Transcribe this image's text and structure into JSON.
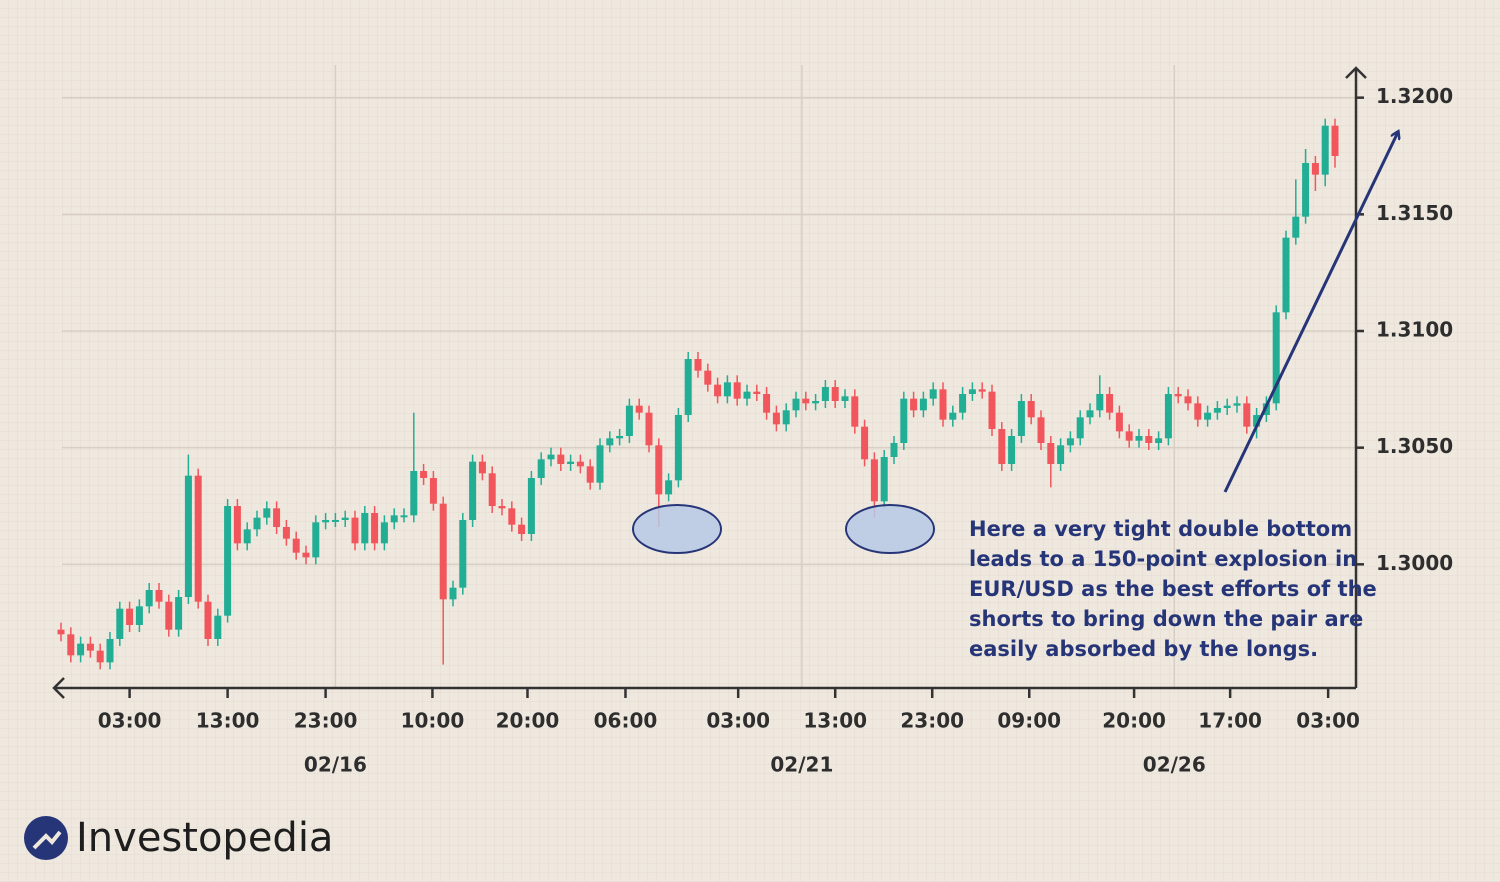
{
  "chart_data": {
    "type": "candlestick",
    "up_color": "#22ad95",
    "down_color": "#f0565b",
    "grid": true,
    "ylim": [
      1.2947,
      1.3214
    ],
    "yticks": [
      {
        "value": 1.3,
        "label": "1.3000"
      },
      {
        "value": 1.305,
        "label": "1.3050"
      },
      {
        "value": 1.31,
        "label": "1.3100"
      },
      {
        "value": 1.315,
        "label": "1.3150"
      },
      {
        "value": 1.32,
        "label": "1.3200"
      }
    ],
    "xticks": [
      {
        "value": 7,
        "label": "03:00"
      },
      {
        "value": 17,
        "label": "13:00"
      },
      {
        "value": 27,
        "label": "23:00"
      },
      {
        "value": 37.9,
        "label": "10:00"
      },
      {
        "value": 47.6,
        "label": "20:00"
      },
      {
        "value": 57.6,
        "label": "06:00"
      },
      {
        "value": 69.1,
        "label": "03:00"
      },
      {
        "value": 79,
        "label": "13:00"
      },
      {
        "value": 88.9,
        "label": "23:00"
      },
      {
        "value": 98.8,
        "label": "09:00"
      },
      {
        "value": 109.5,
        "label": "20:00"
      },
      {
        "value": 119.3,
        "label": "17:00"
      },
      {
        "value": 129.3,
        "label": "03:00"
      }
    ],
    "date_ticks": [
      {
        "value": 28,
        "label": "02/16"
      },
      {
        "value": 75.6,
        "label": "02/21"
      },
      {
        "value": 113.6,
        "label": "02/26"
      }
    ],
    "annotation": [
      "Here a very tight double bottom",
      "leads to a 150-point explosion in",
      "EUR/USD as the best efforts of the",
      "shorts to bring down the pair are",
      "easily absorbed by the longs."
    ],
    "open": [
      1.2972,
      1.297,
      1.2961,
      1.2966,
      1.2963,
      1.2958,
      1.2968,
      1.2981,
      1.2974,
      1.2982,
      1.2989,
      1.2984,
      1.2972,
      1.2986,
      1.3038,
      1.2984,
      1.2968,
      1.2978,
      1.3025,
      1.3009,
      1.3015,
      1.302,
      1.3024,
      1.3016,
      1.3011,
      1.3005,
      1.3003,
      1.3018,
      1.3019,
      1.3019,
      1.302,
      1.3009,
      1.3022,
      1.3009,
      1.3018,
      1.3021,
      1.3021,
      1.304,
      1.3037,
      1.3026,
      1.2985,
      1.299,
      1.3019,
      1.3044,
      1.3039,
      1.3025,
      1.3024,
      1.3017,
      1.3013,
      1.3037,
      1.3045,
      1.3047,
      1.3043,
      1.3044,
      1.3042,
      1.3035,
      1.3051,
      1.3054,
      1.3055,
      1.3068,
      1.3065,
      1.3051,
      1.303,
      1.3036,
      1.3064,
      1.3088,
      1.3083,
      1.3077,
      1.3072,
      1.3078,
      1.3071,
      1.3074,
      1.3073,
      1.3065,
      1.306,
      1.3066,
      1.3071,
      1.3069,
      1.307,
      1.3076,
      1.307,
      1.3072,
      1.3059,
      1.3045,
      1.3027,
      1.3046,
      1.3052,
      1.3071,
      1.3066,
      1.3071,
      1.3075,
      1.3062,
      1.3065,
      1.3073,
      1.3075,
      1.3074,
      1.3058,
      1.3043,
      1.3055,
      1.307,
      1.3063,
      1.3052,
      1.3043,
      1.3051,
      1.3054,
      1.3063,
      1.3066,
      1.3073,
      1.3065,
      1.3057,
      1.3053,
      1.3055,
      1.3052,
      1.3054,
      1.3073,
      1.3072,
      1.3069,
      1.3062,
      1.3065,
      1.3067,
      1.3068,
      1.3069,
      1.3059,
      1.3064,
      1.3069,
      1.3108,
      1.314,
      1.3149,
      1.3172,
      1.3167,
      1.3188
    ],
    "high": [
      1.2975,
      1.2973,
      1.2969,
      1.2969,
      1.2966,
      1.2971,
      1.2984,
      1.2984,
      1.2985,
      1.2992,
      1.2992,
      1.2987,
      1.2989,
      1.3047,
      1.3041,
      1.2987,
      1.2981,
      1.3028,
      1.3028,
      1.3018,
      1.3023,
      1.3027,
      1.3027,
      1.3019,
      1.3014,
      1.3008,
      1.3021,
      1.3022,
      1.3022,
      1.3023,
      1.3023,
      1.3025,
      1.3025,
      1.3021,
      1.3024,
      1.3024,
      1.3065,
      1.3043,
      1.304,
      1.3029,
      1.2993,
      1.3022,
      1.3047,
      1.3047,
      1.3042,
      1.3028,
      1.3027,
      1.302,
      1.304,
      1.3048,
      1.305,
      1.305,
      1.3047,
      1.3047,
      1.3045,
      1.3054,
      1.3057,
      1.3058,
      1.3071,
      1.3071,
      1.3068,
      1.3054,
      1.3039,
      1.3067,
      1.3091,
      1.3091,
      1.3086,
      1.308,
      1.3081,
      1.3081,
      1.3077,
      1.3077,
      1.3076,
      1.3068,
      1.3069,
      1.3074,
      1.3074,
      1.3073,
      1.3079,
      1.3079,
      1.3075,
      1.3075,
      1.3062,
      1.3048,
      1.3049,
      1.3055,
      1.3074,
      1.3074,
      1.3074,
      1.3078,
      1.3078,
      1.3068,
      1.3076,
      1.3078,
      1.3078,
      1.3077,
      1.3061,
      1.3058,
      1.3073,
      1.3073,
      1.3066,
      1.3055,
      1.3054,
      1.3057,
      1.3066,
      1.3069,
      1.3081,
      1.3076,
      1.3068,
      1.306,
      1.3058,
      1.3058,
      1.3057,
      1.3076,
      1.3076,
      1.3075,
      1.3072,
      1.3068,
      1.307,
      1.3071,
      1.3072,
      1.3072,
      1.3067,
      1.3072,
      1.3111,
      1.3143,
      1.3165,
      1.3178,
      1.3175,
      1.3191,
      1.3191
    ],
    "low": [
      1.2967,
      1.2958,
      1.2958,
      1.296,
      1.2955,
      1.2955,
      1.2965,
      1.2971,
      1.2971,
      1.2979,
      1.2981,
      1.2969,
      1.2969,
      1.2983,
      1.2981,
      1.2965,
      1.2965,
      1.2975,
      1.3006,
      1.3006,
      1.3012,
      1.3017,
      1.3013,
      1.3008,
      1.3002,
      1.3,
      1.3,
      1.3015,
      1.3016,
      1.3016,
      1.3006,
      1.3006,
      1.3006,
      1.3006,
      1.3015,
      1.3018,
      1.3018,
      1.3034,
      1.3023,
      1.2957,
      1.2982,
      1.2987,
      1.3016,
      1.3036,
      1.3022,
      1.3021,
      1.3014,
      1.301,
      1.301,
      1.3034,
      1.3042,
      1.304,
      1.304,
      1.3039,
      1.3032,
      1.3032,
      1.3048,
      1.3051,
      1.3052,
      1.3062,
      1.3048,
      1.3016,
      1.3027,
      1.3033,
      1.3061,
      1.308,
      1.3074,
      1.3069,
      1.3069,
      1.3068,
      1.3068,
      1.307,
      1.3062,
      1.3057,
      1.3057,
      1.3063,
      1.3066,
      1.3066,
      1.3067,
      1.3067,
      1.3067,
      1.3056,
      1.3042,
      1.302,
      1.3024,
      1.3043,
      1.3049,
      1.3063,
      1.3063,
      1.3068,
      1.3059,
      1.3059,
      1.3062,
      1.307,
      1.3071,
      1.3055,
      1.304,
      1.304,
      1.3052,
      1.306,
      1.3049,
      1.3033,
      1.304,
      1.3048,
      1.3051,
      1.306,
      1.3063,
      1.3062,
      1.3054,
      1.305,
      1.305,
      1.3049,
      1.3049,
      1.3051,
      1.3069,
      1.3066,
      1.3059,
      1.3059,
      1.3062,
      1.3064,
      1.3065,
      1.3056,
      1.3054,
      1.3061,
      1.3066,
      1.3105,
      1.3137,
      1.3146,
      1.316,
      1.3162,
      1.317
    ],
    "close": [
      1.297,
      1.2961,
      1.2966,
      1.2963,
      1.2958,
      1.2968,
      1.2981,
      1.2974,
      1.2982,
      1.2989,
      1.2984,
      1.2972,
      1.2986,
      1.3038,
      1.2984,
      1.2968,
      1.2978,
      1.3025,
      1.3009,
      1.3015,
      1.302,
      1.3024,
      1.3016,
      1.3011,
      1.3005,
      1.3003,
      1.3018,
      1.3019,
      1.3019,
      1.302,
      1.3009,
      1.3022,
      1.3009,
      1.3018,
      1.3021,
      1.3021,
      1.304,
      1.3037,
      1.3026,
      1.2985,
      1.299,
      1.3019,
      1.3044,
      1.3039,
      1.3025,
      1.3024,
      1.3017,
      1.3013,
      1.3037,
      1.3045,
      1.3047,
      1.3043,
      1.3044,
      1.3042,
      1.3035,
      1.3051,
      1.3054,
      1.3055,
      1.3068,
      1.3065,
      1.3051,
      1.303,
      1.3036,
      1.3064,
      1.3088,
      1.3083,
      1.3077,
      1.3072,
      1.3078,
      1.3071,
      1.3074,
      1.3073,
      1.3065,
      1.306,
      1.3066,
      1.3071,
      1.3069,
      1.307,
      1.3076,
      1.307,
      1.3072,
      1.3059,
      1.3045,
      1.3027,
      1.3046,
      1.3052,
      1.3071,
      1.3066,
      1.3071,
      1.3075,
      1.3062,
      1.3065,
      1.3073,
      1.3075,
      1.3074,
      1.3058,
      1.3043,
      1.3055,
      1.307,
      1.3063,
      1.3052,
      1.3043,
      1.3051,
      1.3054,
      1.3063,
      1.3066,
      1.3073,
      1.3065,
      1.3057,
      1.3053,
      1.3055,
      1.3052,
      1.3054,
      1.3073,
      1.3072,
      1.3069,
      1.3062,
      1.3065,
      1.3067,
      1.3068,
      1.3069,
      1.3059,
      1.3064,
      1.3069,
      1.3108,
      1.314,
      1.3149,
      1.3172,
      1.3167,
      1.3188,
      1.3175
    ]
  },
  "logo": "Investopedia"
}
